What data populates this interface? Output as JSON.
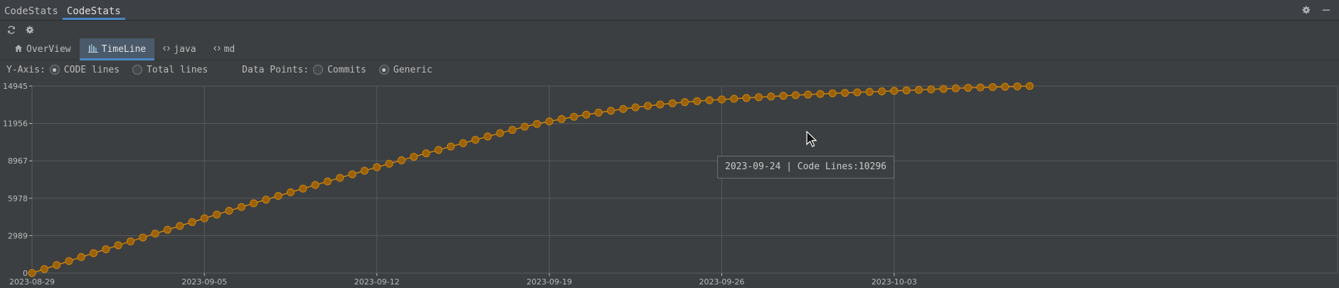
{
  "tool_window": {
    "tabs": [
      {
        "label": "CodeStats"
      },
      {
        "label": "CodeStats"
      }
    ],
    "icons": [
      "gear-icon",
      "minimize-icon"
    ]
  },
  "toolbar": {
    "icons": [
      "refresh-icon",
      "settings-icon"
    ]
  },
  "tabs": [
    {
      "label": "OverView",
      "icon": "home-icon"
    },
    {
      "label": "TimeLine",
      "icon": "bar-chart-icon",
      "active": true
    },
    {
      "label": "java",
      "icon": "code-icon"
    },
    {
      "label": "md",
      "icon": "code-icon"
    }
  ],
  "options": {
    "y_axis_label": "Y-Axis:",
    "y_axis_options": [
      "CODE lines",
      "Total lines"
    ],
    "y_axis_selected": "CODE lines",
    "data_points_label": "Data Points:",
    "data_points_options": [
      "Commits",
      "Generic"
    ],
    "data_points_selected": "Generic"
  },
  "tooltip": {
    "text": "2023-09-24 | Code Lines:10296"
  },
  "colors": {
    "series": "#d0850b",
    "series_dark": "#9a6108",
    "grid": "#575a5c",
    "axis_text": "#bbbbbb",
    "background": "#3c3f41"
  },
  "chart_data": {
    "type": "line",
    "title": "",
    "xlabel": "",
    "ylabel": "",
    "x_start": "2023-08-29",
    "x_end": "2023-10-21",
    "x_ticks": [
      "2023-08-29",
      "2023-09-05",
      "2023-09-12",
      "2023-09-19",
      "2023-09-26",
      "2023-10-03"
    ],
    "y_ticks": [
      0,
      2989,
      5978,
      8967,
      11956,
      14945
    ],
    "ylim": [
      0,
      14945
    ],
    "grid": true,
    "legend": "none",
    "series": [
      {
        "name": "",
        "points_per_day": 2,
        "values": [
          0,
          320,
          640,
          958,
          1276,
          1592,
          1907,
          2220,
          2532,
          2843,
          3152,
          3460,
          3766,
          4071,
          4375,
          4677,
          4977,
          5276,
          5574,
          5869,
          6164,
          6456,
          6747,
          7037,
          7325,
          7611,
          7895,
          8178,
          8459,
          8739,
          9017,
          9293,
          9567,
          9840,
          10111,
          10380,
          10648,
          10914,
          11178,
          11440,
          11700,
          11920,
          12120,
          12310,
          12490,
          12660,
          12820,
          12970,
          13110,
          13240,
          13360,
          13470,
          13570,
          13660,
          13740,
          13810,
          13870,
          13930,
          13990,
          14050,
          14110,
          14165,
          14215,
          14265,
          14315,
          14360,
          14400,
          14440,
          14480,
          14520,
          14560,
          14600,
          14640,
          14680,
          14720,
          14760,
          14800,
          14830,
          14860,
          14890,
          14920,
          14945
        ]
      }
    ]
  }
}
